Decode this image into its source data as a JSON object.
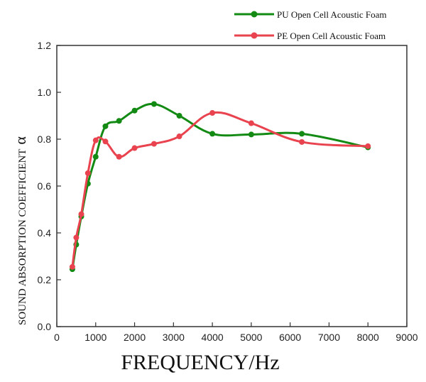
{
  "chart_data": {
    "type": "line",
    "title": "",
    "xlabel": "FREQUENCY/Hz",
    "ylabel": "SOUND ABSORPTION COEFFICIENT",
    "ylabel_symbol": "α",
    "xlim": [
      0,
      9000
    ],
    "ylim": [
      0.0,
      1.2
    ],
    "x_ticks": [
      0,
      1000,
      2000,
      3000,
      4000,
      5000,
      6000,
      7000,
      8000,
      9000
    ],
    "x_tick_labels": [
      "0",
      "1000",
      "2000",
      "3000",
      "4000",
      "5000",
      "6000",
      "7000",
      "8000",
      "9000"
    ],
    "y_ticks": [
      0.0,
      0.2,
      0.4,
      0.6,
      0.8,
      1.0,
      1.2
    ],
    "y_tick_labels": [
      "0.0",
      "0.2",
      "0.4",
      "0.6",
      "0.8",
      "1.0",
      "1.2"
    ],
    "grid": false,
    "legend_position": "top-right",
    "series": [
      {
        "name": "PU Open Cell Acoustic Foam",
        "color": "#138a13",
        "x": [
          400,
          500,
          630,
          800,
          1000,
          1250,
          1600,
          2000,
          2500,
          3150,
          4000,
          5000,
          6300,
          8000
        ],
        "y": [
          0.245,
          0.35,
          0.47,
          0.61,
          0.725,
          0.855,
          0.878,
          0.922,
          0.95,
          0.9,
          0.823,
          0.82,
          0.823,
          0.765
        ]
      },
      {
        "name": "PE Open Cell Acoustic Foam",
        "color": "#e8434e",
        "x": [
          400,
          500,
          630,
          800,
          1000,
          1250,
          1600,
          2000,
          2500,
          3150,
          4000,
          5000,
          6300,
          8000
        ],
        "y": [
          0.255,
          0.38,
          0.48,
          0.655,
          0.795,
          0.79,
          0.725,
          0.762,
          0.78,
          0.812,
          0.912,
          0.868,
          0.788,
          0.77
        ]
      }
    ]
  }
}
